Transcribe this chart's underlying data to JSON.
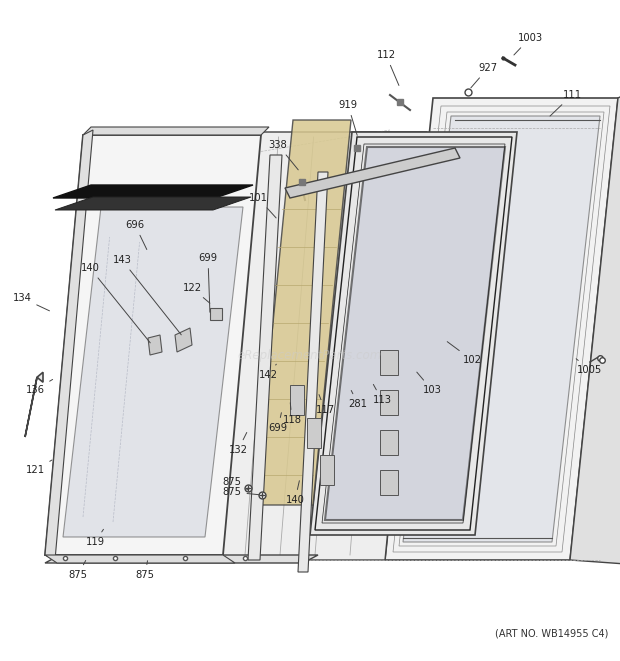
{
  "art_no": "(ART NO. WB14955 C4)",
  "bg_color": "#ffffff",
  "watermark": "eReplacementParts.com",
  "line_color": "#444444",
  "anno_color": "#222222",
  "anno_fontsize": 7.2,
  "annotations": [
    [
      "1003",
      530,
      38,
      510,
      55,
      true
    ],
    [
      "927",
      488,
      68,
      470,
      88,
      true
    ],
    [
      "112",
      388,
      55,
      400,
      85,
      true
    ],
    [
      "111",
      572,
      95,
      545,
      120,
      true
    ],
    [
      "919",
      355,
      105,
      360,
      135,
      true
    ],
    [
      "338",
      280,
      145,
      300,
      170,
      true
    ],
    [
      "101",
      258,
      198,
      280,
      225,
      true
    ],
    [
      "696",
      138,
      228,
      148,
      255,
      true
    ],
    [
      "143",
      126,
      258,
      148,
      278,
      true
    ],
    [
      "140",
      95,
      268,
      110,
      285,
      true
    ],
    [
      "699",
      210,
      258,
      215,
      280,
      true
    ],
    [
      "122",
      195,
      285,
      212,
      300,
      true
    ],
    [
      "134",
      25,
      298,
      55,
      315,
      true
    ],
    [
      "875",
      235,
      375,
      248,
      358,
      true
    ],
    [
      "875",
      240,
      385,
      252,
      368,
      true
    ],
    [
      "102",
      470,
      358,
      448,
      340,
      true
    ],
    [
      "103",
      430,
      388,
      415,
      368,
      true
    ],
    [
      "113",
      385,
      398,
      375,
      380,
      true
    ],
    [
      "281",
      360,
      402,
      350,
      385,
      true
    ],
    [
      "117",
      328,
      408,
      320,
      390,
      true
    ],
    [
      "118",
      295,
      418,
      290,
      398,
      true
    ],
    [
      "142",
      272,
      378,
      280,
      365,
      true
    ],
    [
      "699",
      282,
      428,
      285,
      408,
      true
    ],
    [
      "132",
      240,
      448,
      245,
      428,
      true
    ],
    [
      "140",
      298,
      498,
      298,
      475,
      true
    ],
    [
      "136",
      38,
      388,
      58,
      375,
      true
    ],
    [
      "121",
      38,
      468,
      55,
      460,
      true
    ],
    [
      "119",
      98,
      540,
      108,
      525,
      true
    ],
    [
      "875",
      82,
      575,
      88,
      560,
      true
    ],
    [
      "875",
      148,
      575,
      148,
      558,
      true
    ],
    [
      "1005",
      590,
      368,
      575,
      355,
      true
    ]
  ]
}
